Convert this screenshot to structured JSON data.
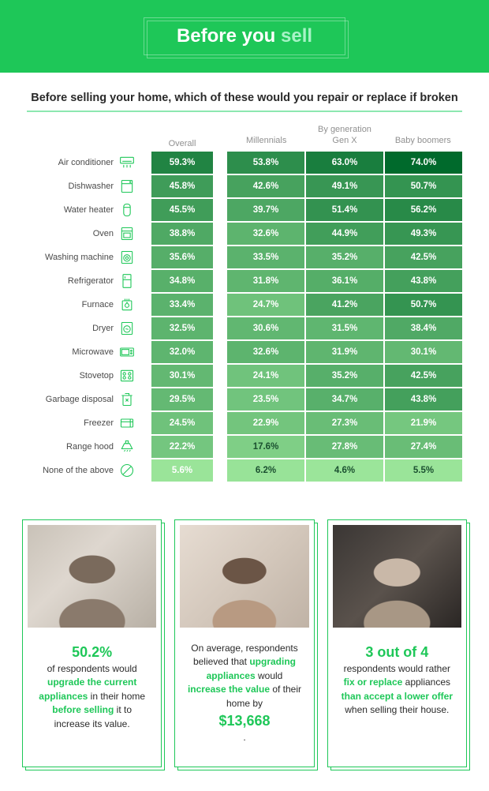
{
  "header": {
    "title_a": "Before you ",
    "title_b": "sell"
  },
  "question": "Before selling your home, which of these would you repair or replace if broken",
  "columns": {
    "overall": "Overall",
    "by_generation": "By generation",
    "gens": [
      "Millennials",
      "Gen X",
      "Baby boomers"
    ]
  },
  "color_scale": {
    "min_color": "#9be59a",
    "max_color": "#006a2c",
    "special_dark": "#1b5030",
    "text_dark_threshold": 25
  },
  "rows": [
    {
      "label": "Air conditioner",
      "icon": "ac",
      "overall": 59.3,
      "gens": [
        53.8,
        63.0,
        74.0
      ]
    },
    {
      "label": "Dishwasher",
      "icon": "dishwasher",
      "overall": 45.8,
      "gens": [
        42.6,
        49.1,
        50.7
      ]
    },
    {
      "label": "Water heater",
      "icon": "water",
      "overall": 45.5,
      "gens": [
        39.7,
        51.4,
        56.2
      ]
    },
    {
      "label": "Oven",
      "icon": "oven",
      "overall": 38.8,
      "gens": [
        32.6,
        44.9,
        49.3
      ]
    },
    {
      "label": "Washing machine",
      "icon": "washer",
      "overall": 35.6,
      "gens": [
        33.5,
        35.2,
        42.5
      ]
    },
    {
      "label": "Refrigerator",
      "icon": "fridge",
      "overall": 34.8,
      "gens": [
        31.8,
        36.1,
        43.8
      ]
    },
    {
      "label": "Furnace",
      "icon": "furnace",
      "overall": 33.4,
      "gens": [
        24.7,
        41.2,
        50.7
      ]
    },
    {
      "label": "Dryer",
      "icon": "dryer",
      "overall": 32.5,
      "gens": [
        30.6,
        31.5,
        38.4
      ]
    },
    {
      "label": "Microwave",
      "icon": "microwave",
      "overall": 32.0,
      "gens": [
        32.6,
        31.9,
        30.1
      ]
    },
    {
      "label": "Stovetop",
      "icon": "stovetop",
      "overall": 30.1,
      "gens": [
        24.1,
        35.2,
        42.5
      ]
    },
    {
      "label": "Garbage disposal",
      "icon": "garbage",
      "overall": 29.5,
      "gens": [
        23.5,
        34.7,
        43.8
      ]
    },
    {
      "label": "Freezer",
      "icon": "freezer",
      "overall": 24.5,
      "gens": [
        22.9,
        27.3,
        21.9
      ]
    },
    {
      "label": "Range hood",
      "icon": "hood",
      "overall": 22.2,
      "gens": [
        17.6,
        27.8,
        27.4
      ]
    },
    {
      "label": "None of the above",
      "icon": "none",
      "overall": 5.6,
      "gens": [
        6.2,
        4.6,
        5.5
      ]
    }
  ],
  "cards": [
    {
      "segments": [
        {
          "t": "50.2%",
          "big": true
        },
        {
          "t": " of respondents would "
        },
        {
          "t": "upgrade the current appliances",
          "em": true
        },
        {
          "t": " in their home "
        },
        {
          "t": "before selling",
          "em": true
        },
        {
          "t": " it to increase its value."
        }
      ]
    },
    {
      "segments": [
        {
          "t": "On average, respondents believed that "
        },
        {
          "t": "upgrading appliances",
          "em": true
        },
        {
          "t": " would "
        },
        {
          "t": "increase the value",
          "em": true
        },
        {
          "t": " of their home by "
        },
        {
          "t": "$13,668",
          "big": true
        },
        {
          "t": "."
        }
      ]
    },
    {
      "segments": [
        {
          "t": "3 out of 4",
          "big": true
        },
        {
          "t": " respondents would rather "
        },
        {
          "t": "fix or replace",
          "em": true
        },
        {
          "t": " appliances "
        },
        {
          "t": "than accept a lower offer",
          "em": true
        },
        {
          "t": " when selling their house."
        }
      ]
    }
  ]
}
